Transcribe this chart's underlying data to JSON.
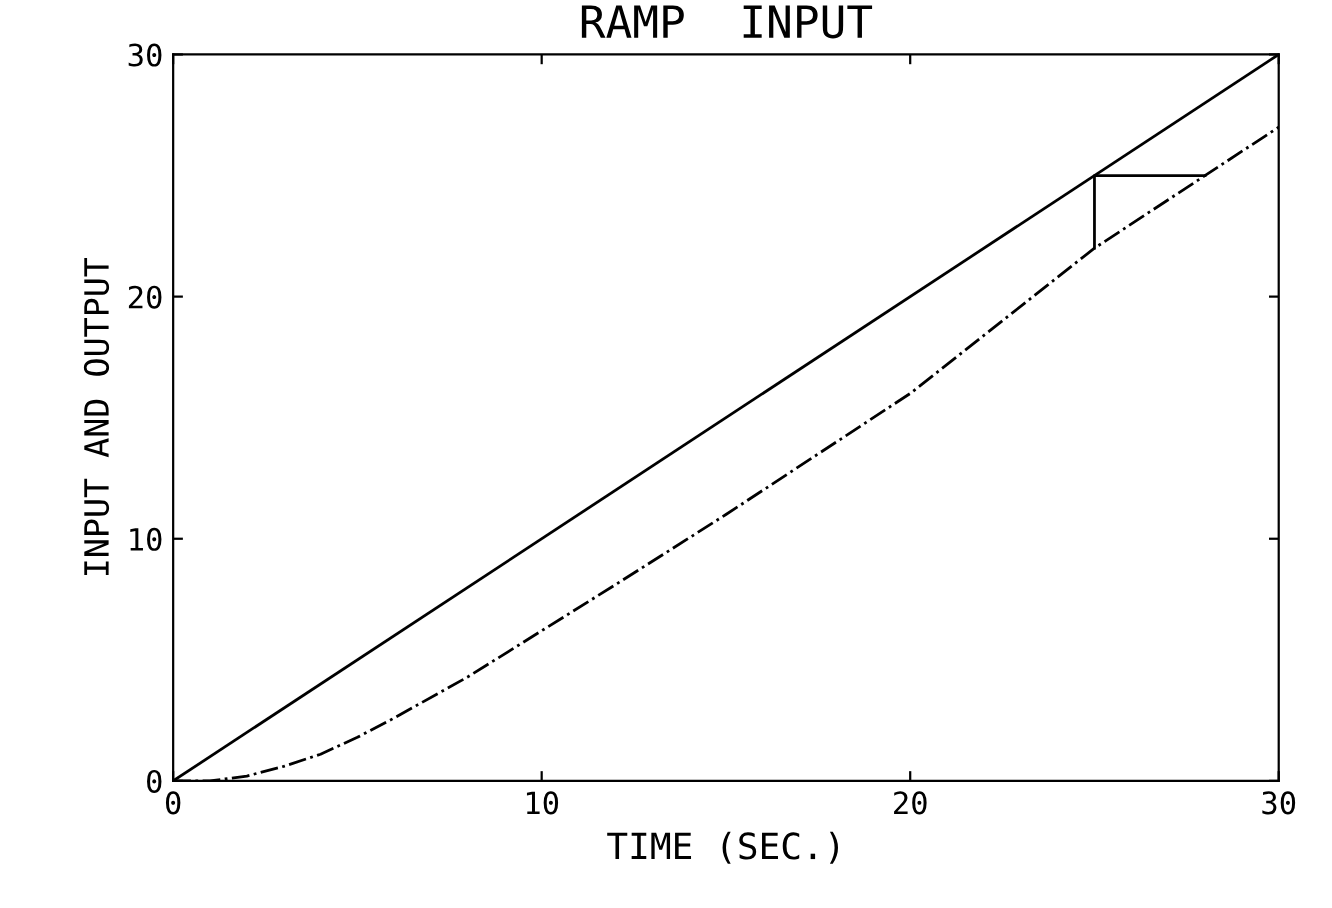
{
  "chart_data": {
    "type": "line",
    "title": "RAMP  INPUT",
    "xlabel": "TIME (SEC.)",
    "ylabel": "INPUT AND OUTPUT",
    "xlim": [
      0,
      30
    ],
    "ylim": [
      0,
      30
    ],
    "xticks": [
      0,
      10,
      20,
      30
    ],
    "yticks": [
      0,
      10,
      20,
      30
    ],
    "grid": false,
    "legend": false,
    "series": [
      {
        "color": "#000000",
        "line_style": "solid",
        "x": [
          0,
          30
        ],
        "values": [
          0,
          30
        ]
      },
      {
        "color": "#000000",
        "line_style": "dashdot",
        "x": [
          0,
          1,
          2,
          3,
          4,
          5,
          6,
          8,
          10,
          12,
          15,
          20,
          25,
          30
        ],
        "values": [
          0,
          0,
          0.2,
          0.6,
          1.1,
          1.8,
          2.6,
          4.3,
          6.2,
          8.1,
          11,
          16,
          22,
          27
        ]
      },
      {
        "color": "#000000",
        "line_style": "solid",
        "x": [
          25,
          25,
          28
        ],
        "values": [
          22,
          25,
          25
        ]
      }
    ]
  }
}
